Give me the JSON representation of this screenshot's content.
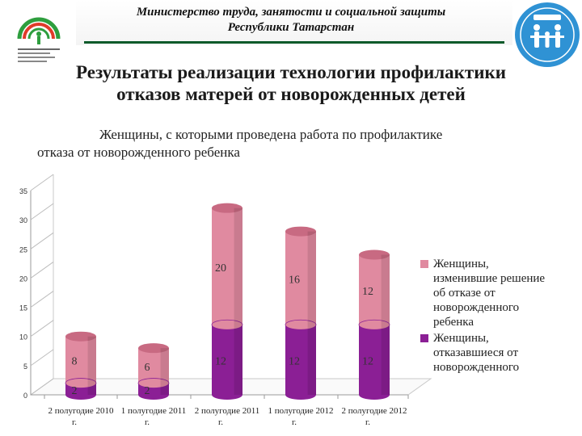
{
  "header": {
    "ministry_line1": "Министерство труда, занятости и социальной защиты",
    "ministry_line2": "Республики Татарстан",
    "left_logo_icon": "ministry-arch-logo-icon",
    "right_logo_icon": "family-emblem-logo-icon"
  },
  "title": {
    "line1": "Результаты реализации технологии профилактики",
    "line2": "отказов матерей от новорожденных детей"
  },
  "chart_data": {
    "type": "bar",
    "stacked": true,
    "style": "3d-cylinder",
    "title_line1": "Женщины, с которыми проведена работа по профилактике",
    "title_line2": "отказа от новорожденного ребенка",
    "categories": [
      [
        "2 полугодие 2010",
        "г."
      ],
      [
        "1 полугодие 2011",
        "г."
      ],
      [
        "2 полугодие 2011",
        "г."
      ],
      [
        "1 полугодие 2012",
        "г."
      ],
      [
        "2 полугодие 2012",
        "г."
      ]
    ],
    "series": [
      {
        "name_lines": [
          "Женщины,",
          "отказавшиеся от",
          "новорожденного"
        ],
        "color": "#8b1f95",
        "top_color": "#a83cb2",
        "values": [
          2,
          2,
          12,
          12,
          12
        ]
      },
      {
        "name_lines": [
          "Женщины,",
          "изменившие решение",
          "об отказе от",
          "новорожденного",
          "ребенка"
        ],
        "color": "#e08aa0",
        "top_color": "#c86a82",
        "values": [
          8,
          6,
          20,
          16,
          12
        ]
      }
    ],
    "ylim": [
      0,
      35
    ],
    "yticks": [
      0,
      5,
      10,
      15,
      20,
      25,
      30,
      35
    ],
    "grid": false,
    "legend_position": "right"
  }
}
